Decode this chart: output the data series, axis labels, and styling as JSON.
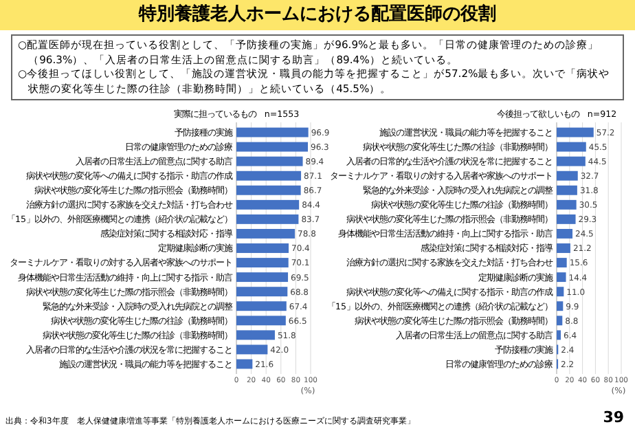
{
  "chart_data": [
    {
      "type": "other",
      "title": "特別養護老人ホームにおける配置医師の役割",
      "annotations": [
        "○配置医師が現在担っている役割として、「予防接種の実施」が96.9%と最も多い。「日常の健康管理のための診療」（96.3%）、「入居者の日常生活上の留意点に関する助言」（89.4%）と続いている。",
        "○今後担ってほしい役割として、「施設の運営状況・職員の能力等を把握すること」が57.2%最も多い。次いで「病状や状態の変化等生じた際の往診（非勤務時間）」と続いている（45.5%）。",
        "出典：令和3年度　老人保健健康増進等事業「特別養護老人ホームにおける医療ニーズに関する調査研究事業」",
        "39"
      ]
    },
    {
      "type": "bar",
      "orientation": "horizontal",
      "title": "実際に担っているもの　n=1553",
      "xlabel": "(%)",
      "color": "#4472c4",
      "grid": "x",
      "xlim": [
        0,
        100
      ],
      "xticks": [
        0,
        20,
        40,
        60,
        80,
        100
      ],
      "categories": [
        "予防接種の実施",
        "日常の健康管理のための診療",
        "入居者の日常生活上の留意点に関する助言",
        "病状や状態の変化等への備えに関する指示・助言の作成",
        "病状や状態の変化等生じた際の指示照会（勤務時間）",
        "治療方針の選択に関する家族を交えた対話・打ち合わせ",
        "「15」以外の、外部医療機関との連携（紹介状の記載など）",
        "感染症対策に関する相談対応・指導",
        "定期健康診断の実施",
        "ターミナルケア・看取りの対する入居者や家族へのサポート",
        "身体機能や日常生活活動の維持・向上に関する指示・助言",
        "病状や状態の変化等生じた際の指示照会（非勤務時間）",
        "緊急的な外来受診・入院時の受入れ先病院との調整",
        "病状や状態の変化等生じた際の往診（勤務時間）",
        "病状や状態の変化等生じた際の往診（非勤務時間）",
        "入居者の日常的な生活や介護の状況を常に把握すること",
        "施設の運営状況・職員の能力等を把握すること"
      ],
      "values": [
        96.9,
        96.3,
        89.4,
        87.1,
        86.7,
        84.4,
        83.7,
        78.8,
        70.4,
        70.1,
        69.5,
        68.8,
        67.4,
        66.5,
        51.8,
        42.0,
        21.6
      ],
      "value_labels": [
        "96.9",
        "96.3",
        "89.4",
        "87.1",
        "86.7",
        "84.4",
        "83.7",
        "78.8",
        "70.4",
        "70.1",
        "69.5",
        "68.8",
        "67.4",
        "66.5",
        "51.8",
        "42.0",
        "21.6"
      ]
    },
    {
      "type": "bar",
      "orientation": "horizontal",
      "title": "今後担って欲しいもの　n=912",
      "xlabel": "(%)",
      "color": "#4472c4",
      "grid": "x",
      "xlim": [
        0,
        100
      ],
      "xticks": [
        0,
        20,
        40,
        60,
        80,
        100
      ],
      "categories": [
        "施設の運営状況・職員の能力等を把握すること",
        "病状や状態の変化等生じた際の往診（非勤務時間）",
        "入居者の日常的な生活や介護の状況を常に把握すること",
        "ターミナルケア・看取りの対する入居者や家族へのサポート",
        "緊急的な外来受診・入院時の受入れ先病院との調整",
        "病状や状態の変化等生じた際の往診（勤務時間）",
        "病状や状態の変化等生じた際の指示照会（非勤務時間）",
        "身体機能や日常生活活動の維持・向上に関する指示・助言",
        "感染症対策に関する相談対応・指導",
        "治療方針の選択に関する家族を交えた対話・打ち合わせ",
        "定期健康診断の実施",
        "病状や状態の変化等への備えに関する指示・助言の作成",
        "「15」以外の、外部医療機関との連携（紹介状の記載など）",
        "病状や状態の変化等生じた際の指示照会（勤務時間）",
        "入居者の日常生活上の留意点に関する助言",
        "予防接種の実施",
        "日常の健康管理のための診療"
      ],
      "values": [
        57.2,
        45.5,
        44.5,
        32.7,
        31.8,
        30.5,
        29.3,
        24.5,
        21.2,
        15.6,
        14.4,
        11.0,
        9.9,
        8.8,
        6.4,
        2.4,
        2.2
      ],
      "value_labels": [
        "57.2",
        "45.5",
        "44.5",
        "32.7",
        "31.8",
        "30.5",
        "29.3",
        "24.5",
        "21.2",
        "15.6",
        "14.4",
        "11.0",
        "9.9",
        "8.8",
        "6.4",
        "2.4",
        "2.2"
      ]
    }
  ]
}
